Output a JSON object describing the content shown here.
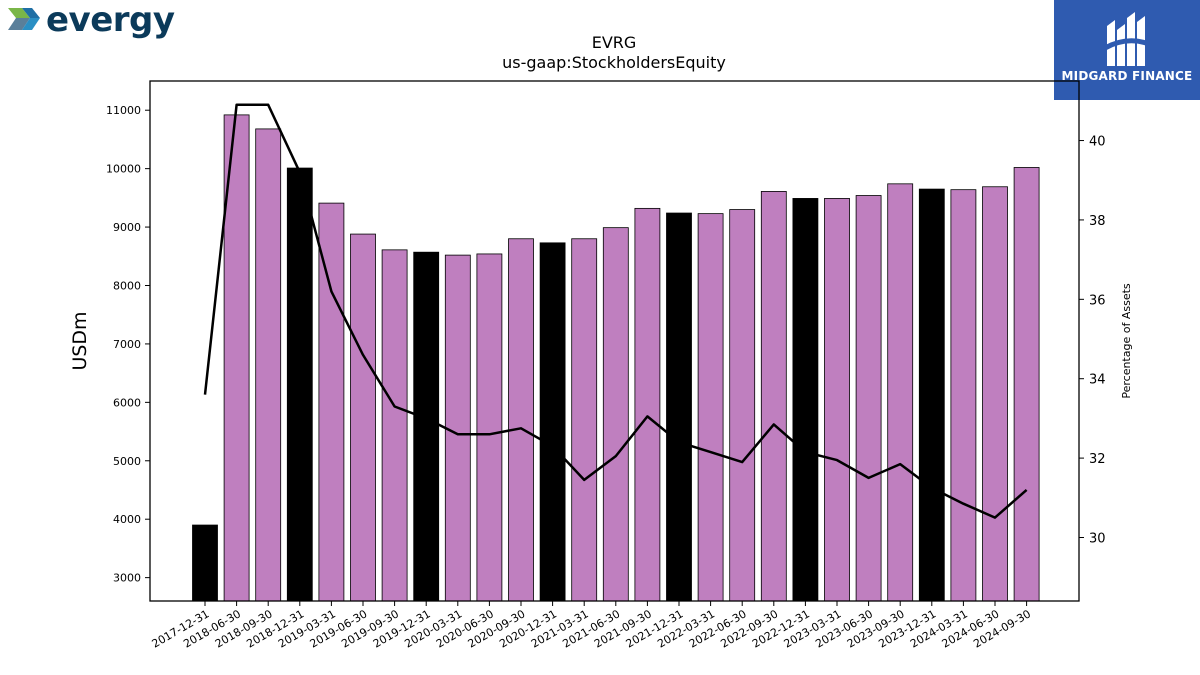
{
  "branding": {
    "left_logo_text": "evergy",
    "right_logo_text": "MIDGARD FINANCE",
    "right_logo_bg": "#2f5bb0"
  },
  "chart_data": {
    "type": "bar",
    "title": "EVRG",
    "subtitle": "us-gaap:StockholdersEquity",
    "ylabel": "USDm",
    "y2label": "Percentage of Assets",
    "ylim": [
      2600,
      11500
    ],
    "y2lim": [
      28.4,
      41.5
    ],
    "yticks": [
      3000,
      4000,
      5000,
      6000,
      7000,
      8000,
      9000,
      10000,
      11000
    ],
    "y2ticks": [
      30,
      32,
      34,
      36,
      38,
      40
    ],
    "grid": false,
    "colors": {
      "quarter": "#bf7fbf",
      "year_end": "#000000",
      "line": "#000000"
    },
    "categories": [
      "2017-12-31",
      "2018-06-30",
      "2018-09-30",
      "2018-12-31",
      "2019-03-31",
      "2019-06-30",
      "2019-09-30",
      "2019-12-31",
      "2020-03-31",
      "2020-06-30",
      "2020-09-30",
      "2020-12-31",
      "2021-03-31",
      "2021-06-30",
      "2021-09-30",
      "2021-12-31",
      "2022-03-31",
      "2022-06-30",
      "2022-09-30",
      "2022-12-31",
      "2023-03-31",
      "2023-06-30",
      "2023-09-30",
      "2023-12-31",
      "2024-03-31",
      "2024-06-30",
      "2024-09-30"
    ],
    "values": [
      3900,
      10920,
      10680,
      10010,
      9410,
      8880,
      8610,
      8570,
      8520,
      8540,
      8800,
      8730,
      8800,
      8990,
      9320,
      9240,
      9230,
      9300,
      9610,
      9490,
      9490,
      9540,
      9740,
      9650,
      9640,
      9690,
      10020
    ],
    "year_end": [
      true,
      false,
      false,
      true,
      false,
      false,
      false,
      true,
      false,
      false,
      false,
      true,
      false,
      false,
      false,
      true,
      false,
      false,
      false,
      true,
      false,
      false,
      false,
      true,
      false,
      false,
      false
    ],
    "series": [
      {
        "name": "Percentage of Assets",
        "axis": "right",
        "values": [
          33.6,
          40.9,
          40.9,
          39.2,
          36.2,
          34.6,
          33.3,
          33.0,
          32.6,
          32.6,
          32.75,
          32.3,
          31.45,
          32.05,
          33.05,
          32.4,
          32.15,
          31.9,
          32.85,
          32.15,
          31.95,
          31.5,
          31.85,
          31.25,
          30.85,
          30.5,
          31.2
        ]
      }
    ]
  }
}
